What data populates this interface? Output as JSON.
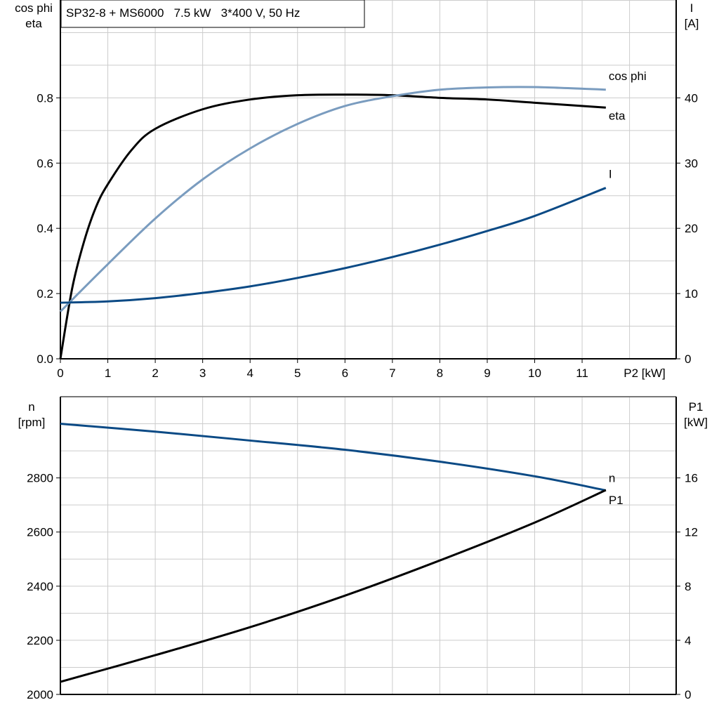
{
  "chart_data": [
    {
      "type": "line",
      "title": "SP32-8 + MS6000   7.5 kW   3*400 V, 50 Hz",
      "xlabel": "P2 [kW]",
      "ylabel_left": [
        "cos phi",
        "eta"
      ],
      "ylabel_right": [
        "I",
        "[A]"
      ],
      "xlim": [
        0,
        12.9
      ],
      "ylim_left": [
        0,
        1.1
      ],
      "ylim_right": [
        0,
        55
      ],
      "xticks": [
        0,
        1,
        2,
        3,
        4,
        5,
        6,
        7,
        8,
        9,
        10,
        11
      ],
      "yticks_left": [
        "0.0",
        "0.2",
        "0.4",
        "0.6",
        "0.8"
      ],
      "yticks_right": [
        "0",
        "10",
        "20",
        "30",
        "40"
      ],
      "grid": true,
      "series": [
        {
          "name": "eta",
          "axis": "left",
          "color": "#000000",
          "x": [
            0,
            0.25,
            0.5,
            0.75,
            1,
            1.5,
            2,
            3,
            4,
            5,
            6,
            7,
            8,
            9,
            10,
            11.5
          ],
          "y": [
            0,
            0.217,
            0.36,
            0.465,
            0.535,
            0.64,
            0.705,
            0.765,
            0.795,
            0.808,
            0.81,
            0.808,
            0.8,
            0.795,
            0.785,
            0.77
          ]
        },
        {
          "name": "cos phi",
          "axis": "left",
          "color": "#7a9cbf",
          "x": [
            0,
            1,
            2,
            3,
            4,
            5,
            6,
            7,
            8,
            9,
            10,
            11.5
          ],
          "y": [
            0.145,
            0.29,
            0.43,
            0.55,
            0.645,
            0.72,
            0.775,
            0.805,
            0.825,
            0.832,
            0.833,
            0.825
          ]
        },
        {
          "name": "I",
          "axis": "right",
          "color": "#0b4a85",
          "x": [
            0,
            1,
            2,
            3,
            4,
            5,
            6,
            7,
            8,
            9,
            10,
            11.5
          ],
          "y": [
            8.6,
            8.8,
            9.3,
            10.1,
            11.1,
            12.4,
            13.9,
            15.6,
            17.5,
            19.6,
            21.9,
            26.2
          ]
        }
      ]
    },
    {
      "type": "line",
      "ylabel_left": [
        "n",
        "[rpm]"
      ],
      "ylabel_right": [
        "P1",
        "[kW]"
      ],
      "xlim": [
        0,
        12.9
      ],
      "ylim_left": [
        2000,
        3100
      ],
      "ylim_right": [
        0,
        22
      ],
      "yticks_left": [
        "2000",
        "2200",
        "2400",
        "2600",
        "2800"
      ],
      "yticks_right": [
        "0",
        "4",
        "8",
        "12",
        "16"
      ],
      "grid": true,
      "series": [
        {
          "name": "n",
          "axis": "left",
          "color": "#0b4a85",
          "x": [
            0,
            2,
            4,
            6,
            8,
            10,
            11.5
          ],
          "y": [
            3000,
            2971,
            2938,
            2904,
            2860,
            2806,
            2754
          ]
        },
        {
          "name": "P1",
          "axis": "right",
          "color": "#000000",
          "x": [
            0,
            2,
            4,
            6,
            8,
            10,
            11.5
          ],
          "y": [
            0.93,
            2.9,
            4.97,
            7.3,
            9.9,
            12.7,
            15.1
          ]
        }
      ]
    }
  ]
}
